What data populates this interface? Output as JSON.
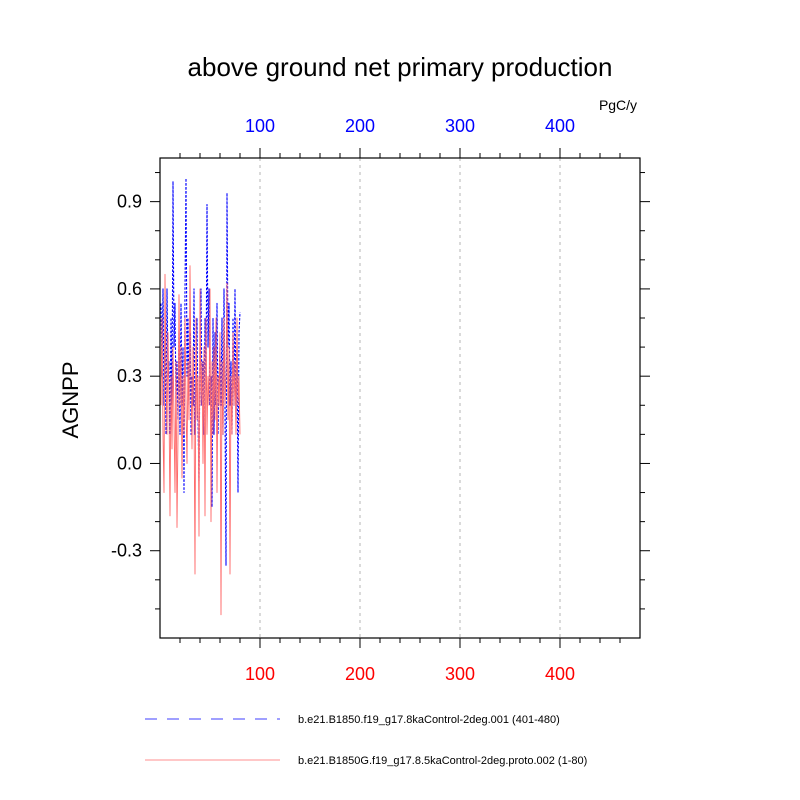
{
  "chart_data": {
    "type": "line",
    "title": "above ground net primary production",
    "ylabel": "AGNPP",
    "units_label": "PgC/y",
    "xlim": [
      0,
      480
    ],
    "ylim": [
      -0.6,
      1.05
    ],
    "xticks": [
      100,
      200,
      300,
      400
    ],
    "xtick_labels": [
      "100",
      "200",
      "300",
      "400"
    ],
    "yticks": [
      -0.3,
      0.0,
      0.3,
      0.6,
      0.9
    ],
    "ytick_labels": [
      "-0.3",
      "0.0",
      "0.3",
      "0.6",
      "0.9"
    ],
    "grid": "vertical dashed at x ticks",
    "legend_position": "bottom",
    "series": [
      {
        "name": "b.e21.B1850.f19_g17.8kaControl-2deg.001 (401-480)",
        "color": "#0000ff",
        "style": "dashed",
        "x": [
          1,
          2,
          3,
          4,
          5,
          6,
          7,
          8,
          9,
          10,
          11,
          12,
          13,
          14,
          15,
          16,
          17,
          18,
          19,
          20,
          21,
          22,
          23,
          24,
          25,
          26,
          27,
          28,
          29,
          30,
          31,
          32,
          33,
          34,
          35,
          36,
          37,
          38,
          39,
          40,
          41,
          42,
          43,
          44,
          45,
          46,
          47,
          48,
          49,
          50,
          51,
          52,
          53,
          54,
          55,
          56,
          57,
          58,
          59,
          60,
          61,
          62,
          63,
          64,
          65,
          66,
          67,
          68,
          69,
          70,
          71,
          72,
          73,
          74,
          75,
          76,
          77,
          78,
          79,
          80
        ],
        "values": [
          0.55,
          0.3,
          0.6,
          0.2,
          0.45,
          0.1,
          0.6,
          0.3,
          0.35,
          0.1,
          0.5,
          0.2,
          0.97,
          0.4,
          0.55,
          0.2,
          0.35,
          0.15,
          0.45,
          0.1,
          0.55,
          0.2,
          0.4,
          -0.1,
          0.6,
          0.98,
          0.3,
          0.5,
          0.2,
          0.45,
          0.1,
          0.3,
          0.2,
          0.6,
          0.1,
          0.3,
          0.5,
          0.15,
          -0.06,
          0.4,
          0.6,
          0.2,
          0.35,
          0.1,
          0.5,
          0.25,
          0.89,
          0.4,
          0.6,
          0.2,
          0.3,
          -0.15,
          0.5,
          0.1,
          0.45,
          0.2,
          0.55,
          0.1,
          0.3,
          0.4,
          0.2,
          0.5,
          0.1,
          0.6,
          0.2,
          -0.35,
          0.93,
          0.4,
          0.55,
          0.2,
          0.35,
          0.1,
          0.5,
          0.2,
          0.6,
          0.15,
          0.4,
          -0.1,
          0.45,
          0.52
        ]
      },
      {
        "name": "b.e21.B1850G.f19_g17.8.5kaControl-2deg.proto.002 (1-80)",
        "color": "#ff6a6a",
        "style": "solid",
        "x": [
          1,
          2,
          3,
          4,
          5,
          6,
          7,
          8,
          9,
          10,
          11,
          12,
          13,
          14,
          15,
          16,
          17,
          18,
          19,
          20,
          21,
          22,
          23,
          24,
          25,
          26,
          27,
          28,
          29,
          30,
          31,
          32,
          33,
          34,
          35,
          36,
          37,
          38,
          39,
          40,
          41,
          42,
          43,
          44,
          45,
          46,
          47,
          48,
          49,
          50,
          51,
          52,
          53,
          54,
          55,
          56,
          57,
          58,
          59,
          60,
          61,
          62,
          63,
          64,
          65,
          66,
          67,
          68,
          69,
          70,
          71,
          72,
          73,
          74,
          75,
          76,
          77,
          78,
          79,
          80
        ],
        "values": [
          0.2,
          0.5,
          0.1,
          -0.1,
          0.65,
          0.3,
          0.1,
          0.45,
          0.2,
          -0.18,
          0.3,
          0.05,
          0.4,
          0.15,
          -0.1,
          0.35,
          -0.22,
          0.1,
          0.58,
          0.2,
          0.4,
          -0.05,
          0.3,
          0.1,
          0.5,
          0.2,
          0.0,
          0.35,
          0.15,
          0.68,
          0.3,
          0.05,
          0.4,
          0.2,
          -0.38,
          0.5,
          0.15,
          0.3,
          -0.25,
          0.6,
          0.2,
          0.35,
          0.0,
          0.4,
          -0.18,
          0.5,
          0.1,
          0.3,
          0.2,
          0.6,
          -0.2,
          0.35,
          0.1,
          0.4,
          0.15,
          0.5,
          -0.1,
          0.3,
          0.2,
          0.45,
          -0.52,
          0.35,
          0.1,
          0.5,
          0.2,
          0.3,
          0.62,
          0.15,
          0.4,
          -0.38,
          0.3,
          0.1,
          0.45,
          0.2,
          0.35,
          0.1,
          0.5,
          0.2,
          0.3,
          0.1
        ]
      }
    ]
  }
}
